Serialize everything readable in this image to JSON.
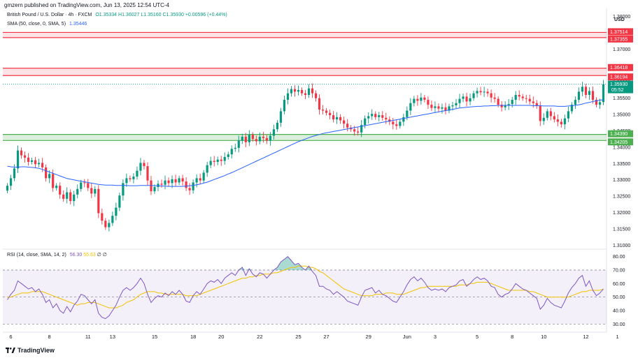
{
  "header": {
    "published": "gmzern published on TradingView.com, Jun 13, 2025 12:54 UTC-4"
  },
  "symbol": {
    "name": "British Pound / U.S. Dollar · 4h · FXCM",
    "o": "O1.35334",
    "h": "H1.36027",
    "l": "L1.35160",
    "c": "C1.35930",
    "change": "+0.00596 (+0.44%)"
  },
  "sma": {
    "label": "SMA (50, close, 0, SMA, 5)",
    "value": "1.35446"
  },
  "rsi": {
    "label": "RSI (14, close, SMA, 14, 2)",
    "value": "56.30",
    "ma_value": "55.63",
    "extra1": "∅",
    "extra2": "∅"
  },
  "currency": "USD",
  "brand": "TradingView",
  "colors": {
    "up": "#089981",
    "down": "#f23645",
    "sma": "#2962ff",
    "rsi": "#7e57c2",
    "rsi_ma": "#f2c200",
    "resistance": "#f23645",
    "support": "#4caf50"
  },
  "price_axis": {
    "ticks": [
      "1.38000",
      "1.37000",
      "1.36000",
      "1.35500",
      "1.35000",
      "1.34500",
      "1.34000",
      "1.33500",
      "1.33000",
      "1.32500",
      "1.32000",
      "1.31500",
      "1.31000"
    ],
    "tick_values": [
      1.38,
      1.37,
      1.36,
      1.355,
      1.35,
      1.345,
      1.34,
      1.335,
      1.33,
      1.325,
      1.32,
      1.315,
      1.31
    ]
  },
  "zones": [
    {
      "name": "resistance-upper",
      "top": "1.37514",
      "bottom": "1.37355",
      "top_v": 1.37514,
      "bottom_v": 1.37355,
      "type": "resistance"
    },
    {
      "name": "resistance-lower",
      "top": "1.36418",
      "bottom": "1.36194",
      "top_v": 1.36418,
      "bottom_v": 1.36194,
      "type": "resistance"
    },
    {
      "name": "support",
      "top": "1.34390",
      "bottom": "1.34205",
      "top_v": 1.3439,
      "bottom_v": 1.34205,
      "type": "support"
    }
  ],
  "last_price": {
    "value": "1.35930",
    "countdown": "05:52",
    "v": 1.3593
  },
  "rsi_axis": {
    "ticks": [
      "80.00",
      "70.00",
      "60.00",
      "50.00",
      "40.00",
      "30.00"
    ],
    "tick_values": [
      80,
      70,
      60,
      50,
      40,
      30
    ],
    "levels": [
      70,
      50,
      30
    ]
  },
  "time_axis": [
    {
      "label": "6",
      "i": 1
    },
    {
      "label": "8",
      "i": 12
    },
    {
      "label": "11",
      "i": 23
    },
    {
      "label": "13",
      "i": 30
    },
    {
      "label": "15",
      "i": 42
    },
    {
      "label": "18",
      "i": 53
    },
    {
      "label": "20",
      "i": 61
    },
    {
      "label": "22",
      "i": 72
    },
    {
      "label": "25",
      "i": 83
    },
    {
      "label": "27",
      "i": 91
    },
    {
      "label": "29",
      "i": 103
    },
    {
      "label": "Jun",
      "i": 114
    },
    {
      "label": "3",
      "i": 122
    },
    {
      "label": "5",
      "i": 134
    },
    {
      "label": "8",
      "i": 144
    },
    {
      "label": "10",
      "i": 153
    },
    {
      "label": "12",
      "i": 165
    },
    {
      "label": "1",
      "i": 174
    }
  ],
  "chart_data": {
    "type": "candlestick",
    "timeframe": "4h",
    "ylim": [
      1.309,
      1.3825
    ],
    "rsi_ylim": [
      25,
      85
    ],
    "closes": [
      1.3282,
      1.3305,
      1.3335,
      1.339,
      1.3375,
      1.3368,
      1.3355,
      1.336,
      1.3348,
      1.3352,
      1.3338,
      1.3305,
      1.3318,
      1.3275,
      1.3282,
      1.3255,
      1.3242,
      1.3262,
      1.3235,
      1.3255,
      1.3272,
      1.3292,
      1.329,
      1.3275,
      1.3258,
      1.3272,
      1.3198,
      1.3175,
      1.3155,
      1.3168,
      1.319,
      1.3215,
      1.3252,
      1.329,
      1.3305,
      1.3302,
      1.331,
      1.3328,
      1.3352,
      1.3342,
      1.3298,
      1.3265,
      1.3278,
      1.3288,
      1.3285,
      1.3298,
      1.329,
      1.3302,
      1.3292,
      1.3305,
      1.3295,
      1.3275,
      1.3268,
      1.3292,
      1.3305,
      1.3298,
      1.3322,
      1.3345,
      1.3358,
      1.3355,
      1.3362,
      1.3358,
      1.337,
      1.3378,
      1.3395,
      1.3398,
      1.342,
      1.3432,
      1.3415,
      1.3438,
      1.3425,
      1.3418,
      1.3432,
      1.3428,
      1.342,
      1.3435,
      1.3455,
      1.3475,
      1.351,
      1.3545,
      1.3565,
      1.3578,
      1.357,
      1.3575,
      1.3565,
      1.356,
      1.358,
      1.3565,
      1.355,
      1.3515,
      1.3512,
      1.3505,
      1.3498,
      1.3485,
      1.3492,
      1.3482,
      1.3472,
      1.346,
      1.3455,
      1.3448,
      1.3445,
      1.3468,
      1.3488,
      1.3495,
      1.3502,
      1.3492,
      1.3498,
      1.349,
      1.3485,
      1.3478,
      1.347,
      1.3465,
      1.3478,
      1.3492,
      1.3512,
      1.3535,
      1.3548,
      1.3542,
      1.3552,
      1.3545,
      1.353,
      1.352,
      1.3525,
      1.3518,
      1.3522,
      1.3512,
      1.3525,
      1.3528,
      1.3535,
      1.3548,
      1.3555,
      1.354,
      1.355,
      1.3565,
      1.3572,
      1.3568,
      1.357,
      1.3565,
      1.3552,
      1.3548,
      1.353,
      1.3522,
      1.3528,
      1.3532,
      1.3545,
      1.356,
      1.3555,
      1.355,
      1.3548,
      1.354,
      1.3535,
      1.3528,
      1.348,
      1.349,
      1.351,
      1.3495,
      1.3485,
      1.3478,
      1.347,
      1.3488,
      1.351,
      1.353,
      1.3545,
      1.357,
      1.3585,
      1.356,
      1.3572,
      1.3545,
      1.353,
      1.3538,
      1.3593
    ],
    "sma": [
      1.3342,
      1.334,
      1.3339,
      1.3339,
      1.334,
      1.334,
      1.3339,
      1.3338,
      1.3337,
      1.3335,
      1.3332,
      1.3328,
      1.3324,
      1.332,
      1.3316,
      1.3312,
      1.3308,
      1.3304,
      1.3302,
      1.33,
      1.3298,
      1.3296,
      1.3294,
      1.3292,
      1.329,
      1.3288,
      1.3286,
      1.3285,
      1.3284,
      1.3284,
      1.3284,
      1.3283,
      1.3283,
      1.3283,
      1.3283,
      1.3282,
      1.3282,
      1.3282,
      1.3283,
      1.3283,
      1.3283,
      1.3283,
      1.3282,
      1.3282,
      1.3281,
      1.3281,
      1.328,
      1.328,
      1.328,
      1.328,
      1.328,
      1.3281,
      1.3282,
      1.3283,
      1.3285,
      1.3287,
      1.329,
      1.3293,
      1.3297,
      1.3301,
      1.3305,
      1.3309,
      1.3313,
      1.3318,
      1.3322,
      1.3327,
      1.3332,
      1.3337,
      1.3342,
      1.3347,
      1.3352,
      1.3357,
      1.3362,
      1.3367,
      1.3372,
      1.3377,
      1.3382,
      1.3387,
      1.3392,
      1.3397,
      1.3402,
      1.3407,
      1.3412,
      1.3417,
      1.3421,
      1.3425,
      1.3429,
      1.3433,
      1.3436,
      1.3439,
      1.3442,
      1.3444,
      1.3446,
      1.3448,
      1.345,
      1.3452,
      1.3454,
      1.3456,
      1.3458,
      1.346,
      1.3462,
      1.3464,
      1.3466,
      1.3468,
      1.347,
      1.3472,
      1.3474,
      1.3476,
      1.3478,
      1.348,
      1.3482,
      1.3484,
      1.3486,
      1.3488,
      1.349,
      1.3492,
      1.3494,
      1.3496,
      1.3498,
      1.35,
      1.3502,
      1.3504,
      1.3506,
      1.3508,
      1.351,
      1.3512,
      1.3514,
      1.3516,
      1.3518,
      1.352,
      1.3521,
      1.3522,
      1.3523,
      1.3524,
      1.3525,
      1.3525,
      1.3526,
      1.3526,
      1.3527,
      1.3527,
      1.3528,
      1.3528,
      1.3528,
      1.3528,
      1.3528,
      1.3528,
      1.3528,
      1.3528,
      1.3528,
      1.3528,
      1.3527,
      1.3527,
      1.3527,
      1.3526,
      1.3526,
      1.3526,
      1.3526,
      1.3525,
      1.3525,
      1.3525,
      1.3526,
      1.3527,
      1.3528,
      1.353,
      1.3532,
      1.3535,
      1.3537,
      1.354,
      1.3542,
      1.3544,
      1.3545
    ],
    "rsi": [
      48,
      52,
      55,
      62,
      60,
      58,
      56,
      57,
      54,
      56,
      52,
      46,
      48,
      42,
      45,
      40,
      38,
      43,
      39,
      44,
      47,
      52,
      51,
      48,
      45,
      48,
      38,
      35,
      34,
      36,
      40,
      44,
      50,
      55,
      57,
      55,
      57,
      60,
      64,
      60,
      52,
      46,
      49,
      51,
      50,
      53,
      51,
      54,
      52,
      55,
      52,
      47,
      46,
      51,
      54,
      52,
      56,
      60,
      62,
      61,
      63,
      60,
      64,
      66,
      68,
      66,
      70,
      72,
      66,
      71,
      67,
      65,
      68,
      67,
      64,
      67,
      70,
      72,
      76,
      78,
      80,
      77,
      74,
      75,
      72,
      70,
      73,
      69,
      66,
      58,
      58,
      56,
      55,
      52,
      54,
      52,
      50,
      47,
      46,
      45,
      44,
      50,
      55,
      56,
      57,
      53,
      55,
      52,
      51,
      49,
      47,
      46,
      50,
      54,
      59,
      63,
      65,
      62,
      64,
      61,
      57,
      55,
      56,
      55,
      56,
      54,
      57,
      58,
      59,
      62,
      63,
      58,
      60,
      63,
      65,
      63,
      64,
      62,
      58,
      57,
      52,
      50,
      52,
      53,
      56,
      60,
      58,
      56,
      55,
      53,
      51,
      49,
      41,
      44,
      49,
      46,
      44,
      43,
      42,
      47,
      53,
      57,
      60,
      64,
      66,
      58,
      62,
      55,
      51,
      53,
      56
    ],
    "rsi_ma": [
      50,
      50,
      51,
      52,
      53,
      53,
      53,
      54,
      54,
      54,
      54,
      53,
      52,
      51,
      50,
      49,
      48,
      47,
      46,
      45,
      44,
      45,
      45,
      46,
      46,
      46,
      45,
      44,
      43,
      42,
      42,
      42,
      43,
      44,
      46,
      47,
      48,
      50,
      52,
      53,
      54,
      54,
      54,
      53,
      53,
      52,
      52,
      52,
      52,
      52,
      52,
      51,
      51,
      51,
      51,
      52,
      53,
      54,
      55,
      56,
      57,
      58,
      59,
      60,
      61,
      62,
      63,
      64,
      64,
      65,
      65,
      66,
      66,
      67,
      67,
      67,
      68,
      68,
      69,
      70,
      71,
      72,
      72,
      73,
      73,
      73,
      72,
      72,
      71,
      69,
      68,
      66,
      64,
      62,
      60,
      58,
      56,
      55,
      54,
      53,
      52,
      51,
      51,
      51,
      51,
      52,
      52,
      52,
      53,
      53,
      53,
      52,
      52,
      52,
      53,
      54,
      55,
      56,
      57,
      57,
      58,
      58,
      58,
      58,
      58,
      58,
      58,
      58,
      58,
      59,
      59,
      59,
      60,
      60,
      61,
      61,
      61,
      61,
      60,
      59,
      58,
      57,
      56,
      55,
      55,
      55,
      55,
      55,
      55,
      54,
      54,
      53,
      52,
      51,
      50,
      50,
      50,
      50,
      50,
      50,
      50,
      51,
      52,
      53,
      54,
      54,
      55,
      55,
      55,
      55,
      56
    ]
  }
}
